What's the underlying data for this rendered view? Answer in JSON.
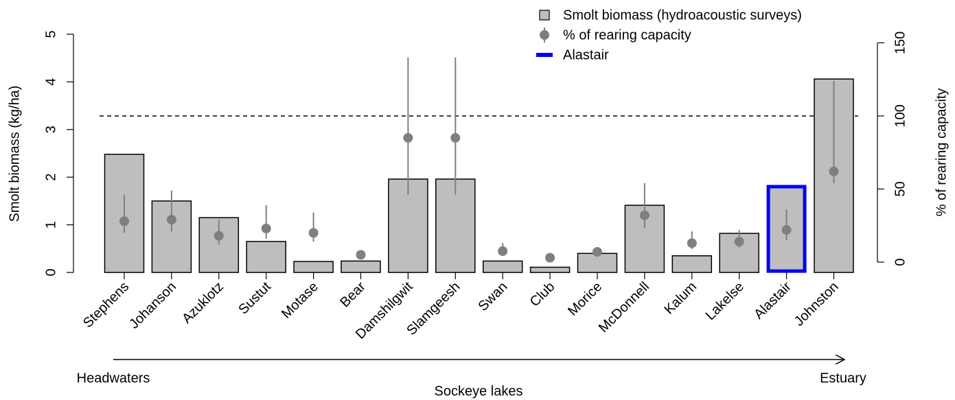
{
  "chart_data": {
    "type": "bar",
    "x_label": "Sockeye lakes",
    "y_label": "Smolt biomass (kg/ha)",
    "y2_label": "% of rearing capacity",
    "categories": [
      "Stephens",
      "Johanson",
      "Azuklotz",
      "Sustut",
      "Motase",
      "Bear",
      "Damshilgwit",
      "Slamgeesh",
      "Swan",
      "Club",
      "Morice",
      "McDonnell",
      "Kalum",
      "Lakelse",
      "Alastair",
      "Johnston"
    ],
    "series": [
      {
        "name": "Smolt biomass (hydroacoustic surveys)",
        "color": "#bebebe",
        "values": [
          2.48,
          1.5,
          1.15,
          0.65,
          0.23,
          0.24,
          1.96,
          1.96,
          0.24,
          0.11,
          0.4,
          1.41,
          0.35,
          0.82,
          1.83,
          4.06
        ]
      },
      {
        "name": "% of rearing capacity",
        "color": "#7f7f7f",
        "axis": "y2",
        "values": [
          28,
          29,
          18,
          23,
          20,
          5,
          85,
          85,
          7.5,
          3,
          7,
          32,
          13,
          14,
          22,
          62
        ],
        "lower": [
          20,
          21,
          12,
          16,
          14,
          5,
          46,
          46,
          5,
          3,
          5,
          23,
          9,
          10,
          15,
          54
        ],
        "upper": [
          46,
          49,
          29,
          39,
          34,
          5,
          140,
          140,
          13,
          3,
          10,
          54,
          21,
          22,
          36,
          124
        ]
      },
      {
        "name": "Alastair",
        "color": "#0000ff"
      }
    ],
    "reference_y2": 100,
    "ylim": [
      -0.2,
      5.2
    ],
    "yticks": [
      0,
      1,
      2,
      3,
      4,
      5
    ],
    "y2lim": [
      -13.6,
      162.4
    ],
    "y2ticks": [
      0,
      50,
      100,
      150
    ],
    "annotations": [
      "Headwaters",
      "Estuary"
    ]
  }
}
